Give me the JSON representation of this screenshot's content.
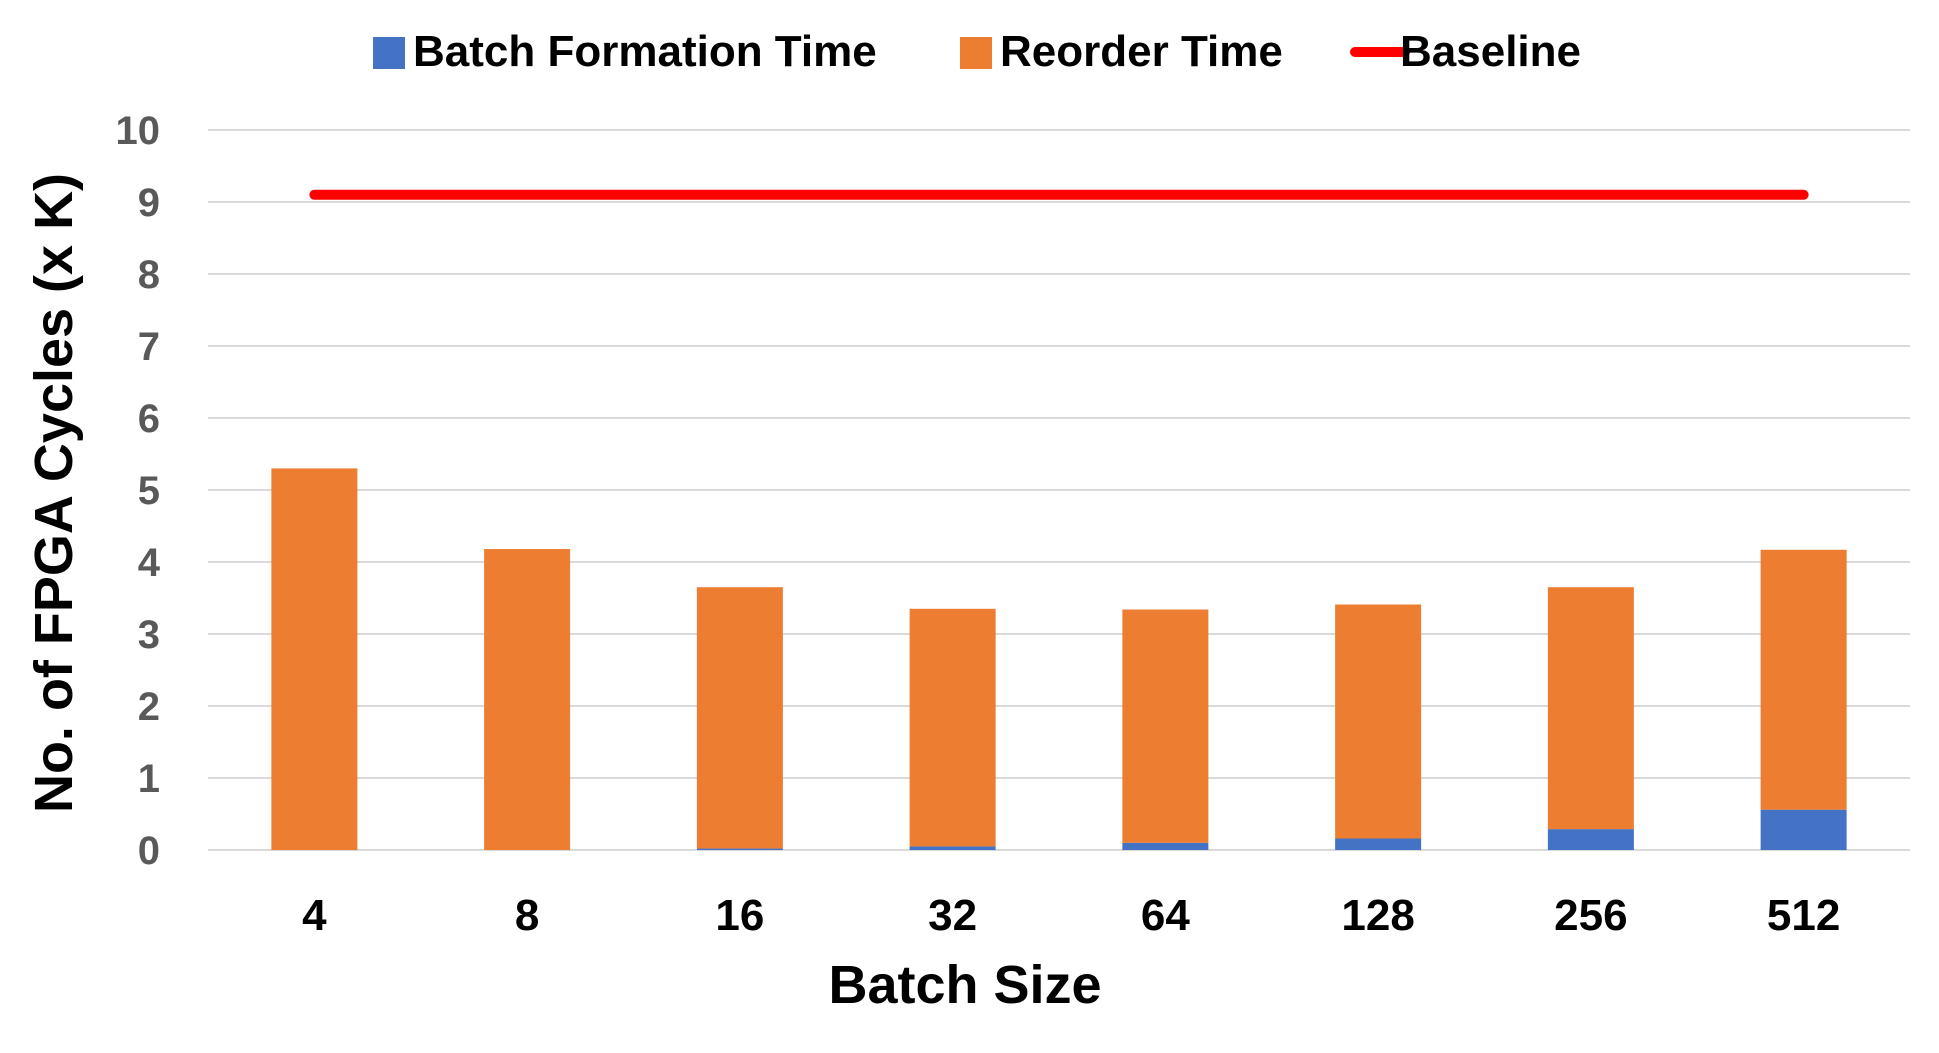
{
  "chart_data": {
    "type": "bar",
    "stacked": true,
    "categories": [
      "4",
      "8",
      "16",
      "32",
      "64",
      "128",
      "256",
      "512"
    ],
    "series": [
      {
        "name": "Batch Formation Time",
        "color": "#4472C4",
        "values": [
          0.0,
          0.0,
          0.02,
          0.05,
          0.1,
          0.16,
          0.29,
          0.56
        ]
      },
      {
        "name": "Reorder Time",
        "color": "#ED7D31",
        "values": [
          5.3,
          4.18,
          3.63,
          3.3,
          3.24,
          3.25,
          3.36,
          3.61
        ]
      }
    ],
    "baseline": {
      "name": "Baseline",
      "color": "#FF0000",
      "value": 9.1
    },
    "xlabel": "Batch Size",
    "ylabel": "No. of FPGA Cycles (x K)",
    "ylim": [
      0,
      10
    ],
    "yticks": [
      "0",
      "1",
      "2",
      "3",
      "4",
      "5",
      "6",
      "7",
      "8",
      "9",
      "10"
    ],
    "grid": true,
    "legend_position": "top"
  }
}
